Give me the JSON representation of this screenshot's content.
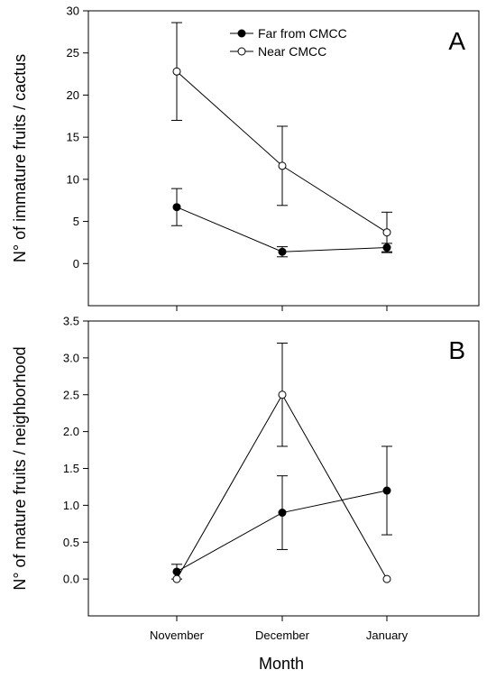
{
  "chart_data": [
    {
      "type": "line",
      "panel_label": "A",
      "ylabel": "N° of immature fruits / cactus",
      "ylim": [
        -5,
        30
      ],
      "y_ticks": [
        "0",
        "5",
        "10",
        "15",
        "20",
        "25",
        "30"
      ],
      "categories": [
        "November",
        "December",
        "January"
      ],
      "legend": {
        "position": "top-center"
      },
      "series": [
        {
          "name": "Far from CMCC",
          "marker": "filled-circle",
          "color": "#000000",
          "values": [
            6.7,
            1.4,
            1.9
          ],
          "errors": [
            2.2,
            0.6,
            0.5
          ]
        },
        {
          "name": "Near CMCC",
          "marker": "open-circle",
          "color": "#000000",
          "values": [
            22.8,
            11.6,
            3.7
          ],
          "errors": [
            5.8,
            4.7,
            2.4
          ]
        }
      ]
    },
    {
      "type": "line",
      "panel_label": "B",
      "ylabel": "N° of mature fruits / neighborhood",
      "ylim": [
        -0.5,
        3.5
      ],
      "y_ticks": [
        "0.0",
        "0.5",
        "1.0",
        "1.5",
        "2.0",
        "2.5",
        "3.0",
        "3.5"
      ],
      "categories": [
        "November",
        "December",
        "January"
      ],
      "xlabel": "Month",
      "series": [
        {
          "name": "Far from CMCC",
          "marker": "filled-circle",
          "color": "#000000",
          "values": [
            0.1,
            0.9,
            1.2
          ],
          "errors": [
            0.1,
            0.5,
            0.6
          ]
        },
        {
          "name": "Near CMCC",
          "marker": "open-circle",
          "color": "#000000",
          "values": [
            0.0,
            2.5,
            0.0
          ],
          "errors": [
            0,
            0.7,
            0
          ]
        }
      ]
    }
  ]
}
